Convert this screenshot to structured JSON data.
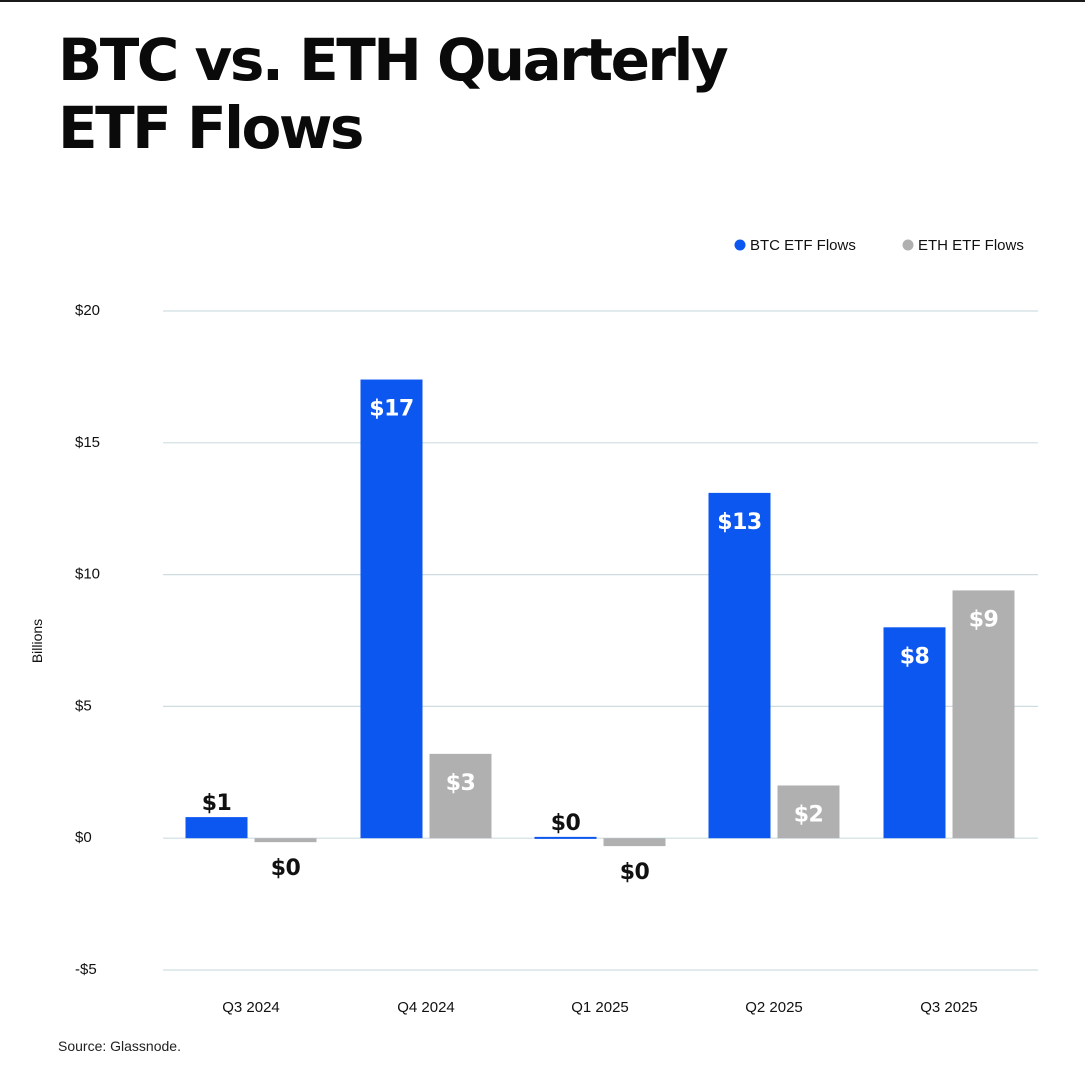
{
  "title": "BTC vs. ETH  Quarterly\nETF Flows",
  "source": "Source: Glassnode.",
  "colors": {
    "btc": "#0b57f0",
    "eth": "#b0b0b0",
    "grid": "#cfdde0",
    "text": "#111111"
  },
  "chart_data": {
    "type": "bar",
    "title": "BTC vs. ETH  Quarterly ETF Flows",
    "xlabel": "",
    "ylabel": "Billions",
    "ylim": [
      -5,
      20
    ],
    "yticks": [
      -5,
      0,
      5,
      10,
      15,
      20
    ],
    "ytick_labels": [
      "-$5",
      "$0",
      "$5",
      "$10",
      "$15",
      "$20"
    ],
    "grid": true,
    "legend_position": "top-right",
    "categories": [
      "Q3 2024",
      "Q4 2024",
      "Q1 2025",
      "Q2 2025",
      "Q3 2025"
    ],
    "series": [
      {
        "name": "BTC ETF Flows",
        "color": "#0b57f0",
        "values": [
          0.8,
          17.4,
          0.05,
          13.1,
          8.0
        ],
        "labels": [
          "$1",
          "$17",
          "$0",
          "$13",
          "$8"
        ]
      },
      {
        "name": "ETH ETF Flows",
        "color": "#b0b0b0",
        "values": [
          -0.15,
          3.2,
          -0.3,
          2.0,
          9.4
        ],
        "labels": [
          "$0",
          "$3",
          "$0",
          "$2",
          "$9"
        ]
      }
    ]
  }
}
